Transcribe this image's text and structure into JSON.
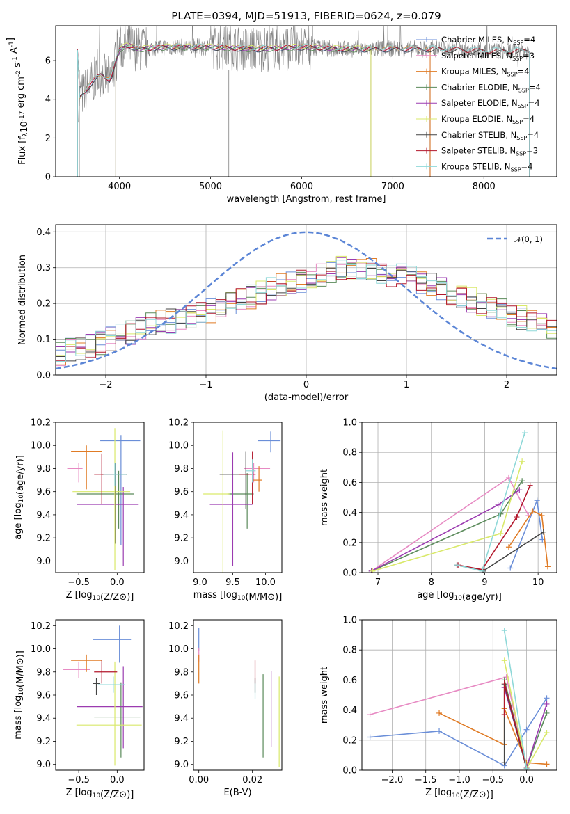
{
  "title": "PLATE=0394, MJD=51913, FIBERID=0624, z=0.079",
  "colors": {
    "Chabrier MILES": "#6a8ed8",
    "Salpeter MILES": "#e78ac3",
    "Kroupa MILES": "#e07b25",
    "Chabrier ELODIE": "#5a8a5a",
    "Salpeter ELODIE": "#9b3bb0",
    "Kroupa ELODIE": "#d9e96a",
    "Chabrier STELIB": "#444444",
    "Salpeter STELIB": "#b2172b",
    "Kroupa STELIB": "#8ed8d8",
    "data": "#808080",
    "gaussian": "#5b85d6"
  },
  "chart_data": [
    {
      "id": "spectrum",
      "type": "line",
      "xlabel": "wavelength [Angstrom, rest frame]",
      "ylabel": "Flux [f_λ10^-17 erg cm^-2 s^-1 A^-1]",
      "xlim": [
        3300,
        8800
      ],
      "ylim": [
        0,
        7.8
      ],
      "xticks": [
        "4000",
        "5000",
        "6000",
        "7000",
        "8000"
      ],
      "yticks": [
        "0",
        "2",
        "4",
        "6"
      ],
      "legend_position": "upper-right",
      "legend": [
        {
          "model": "Chabrier MILES",
          "label": "Chabrier MILES, N",
          "nssp": "4"
        },
        {
          "model": "Salpeter MILES",
          "label": "Salpeter MILES, N",
          "nssp": "3"
        },
        {
          "model": "Kroupa MILES",
          "label": "Kroupa MILES, N",
          "nssp": "4"
        },
        {
          "model": "Chabrier ELODIE",
          "label": "Chabrier ELODIE, N",
          "nssp": "4"
        },
        {
          "model": "Salpeter ELODIE",
          "label": "Salpeter ELODIE, N",
          "nssp": "4"
        },
        {
          "model": "Kroupa ELODIE",
          "label": "Kroupa ELODIE, N",
          "nssp": "4"
        },
        {
          "model": "Chabrier STELIB",
          "label": "Chabrier STELIB, N",
          "nssp": "4"
        },
        {
          "model": "Salpeter STELIB",
          "label": "Salpeter STELIB, N",
          "nssp": "3"
        },
        {
          "model": "Kroupa STELIB",
          "label": "Kroupa STELIB, N",
          "nssp": "4"
        }
      ],
      "nssp_subscript": "SSP",
      "model_continuum": {
        "x": [
          3550,
          3600,
          3700,
          3800,
          3900,
          4000,
          4100,
          4200,
          4500,
          5000,
          5500,
          6000,
          6500,
          7000,
          7500,
          8000,
          8500
        ],
        "y": [
          4.0,
          4.3,
          4.9,
          5.3,
          5.0,
          6.6,
          6.8,
          6.6,
          6.7,
          6.7,
          6.6,
          6.7,
          6.6,
          6.6,
          6.6,
          6.5,
          6.5
        ]
      },
      "model_ranges": {
        "MILES": [
          3540,
          7410
        ],
        "ELODIE": [
          3960,
          6760
        ],
        "STELIB": [
          3540,
          8500
        ]
      }
    },
    {
      "id": "residuals",
      "type": "histogram",
      "xlabel": "(data-model)/error",
      "ylabel": "Normed distribution",
      "xlim": [
        -2.5,
        2.5
      ],
      "ylim": [
        0,
        0.42
      ],
      "xticks": [
        "−2",
        "−1",
        "0",
        "1",
        "2"
      ],
      "yticks": [
        "0.0",
        "0.1",
        "0.2",
        "0.3",
        "0.4"
      ],
      "gaussian_label": "𝒩(0, 1)",
      "bin_width": 0.1,
      "base_profile": [
        0.06,
        0.07,
        0.07,
        0.08,
        0.09,
        0.1,
        0.11,
        0.12,
        0.13,
        0.14,
        0.15,
        0.15,
        0.16,
        0.16,
        0.17,
        0.18,
        0.19,
        0.2,
        0.21,
        0.22,
        0.23,
        0.24,
        0.25,
        0.26,
        0.26,
        0.27,
        0.28,
        0.29,
        0.3,
        0.3,
        0.3,
        0.3,
        0.29,
        0.28,
        0.28,
        0.27,
        0.26,
        0.25,
        0.24,
        0.23,
        0.22,
        0.21,
        0.2,
        0.19,
        0.18,
        0.17,
        0.16,
        0.15,
        0.14,
        0.13
      ]
    },
    {
      "id": "age_vs_Z",
      "type": "errorbar",
      "xlabel": "Z [log10(Z/Z⊙)]",
      "ylabel": "age  [log10(age/yr)]",
      "xlim": [
        -0.8,
        0.35
      ],
      "ylim": [
        8.9,
        10.2
      ],
      "xticks": [
        "−0.5",
        "0.0"
      ],
      "yticks": [
        "9.0",
        "9.2",
        "9.4",
        "9.6",
        "9.8",
        "10.0",
        "10.2"
      ],
      "points": [
        {
          "model": "Chabrier MILES",
          "x": 0.05,
          "y": 10.04,
          "xerr": [
            0.27,
            0.25
          ],
          "yerr": [
            0.9,
            0.05
          ]
        },
        {
          "model": "Salpeter MILES",
          "x": -0.5,
          "y": 9.8,
          "xerr": [
            0.15,
            0.05
          ],
          "yerr": [
            0.12,
            0.05
          ]
        },
        {
          "model": "Kroupa MILES",
          "x": -0.4,
          "y": 9.95,
          "xerr": [
            0.2,
            0.2
          ],
          "yerr": [
            0.33,
            0.05
          ]
        },
        {
          "model": "Chabrier ELODIE",
          "x": 0.02,
          "y": 9.58,
          "xerr": [
            0.55,
            0.2
          ],
          "yerr": [
            0.3,
            0.2
          ]
        },
        {
          "model": "Salpeter ELODIE",
          "x": 0.08,
          "y": 9.49,
          "xerr": [
            0.6,
            0.2
          ],
          "yerr": [
            0.53,
            0.15
          ]
        },
        {
          "model": "Kroupa ELODIE",
          "x": -0.03,
          "y": 9.6,
          "xerr": [
            0.55,
            0.2
          ],
          "yerr": [
            0.68,
            0.55
          ]
        },
        {
          "model": "Chabrier STELIB",
          "x": -0.02,
          "y": 9.75,
          "xerr": [
            0.18,
            0.15
          ],
          "yerr": [
            0.6,
            0.1
          ]
        },
        {
          "model": "Salpeter STELIB",
          "x": -0.2,
          "y": 9.75,
          "xerr": [
            0.1,
            0.15
          ],
          "yerr": [
            0.26,
            0.18
          ]
        },
        {
          "model": "Kroupa STELIB",
          "x": -0.03,
          "y": 9.75,
          "xerr": [
            0.15,
            0.15
          ],
          "yerr": [
            0.1,
            0.1
          ]
        }
      ]
    },
    {
      "id": "age_vs_mass",
      "type": "errorbar",
      "xlabel": "mass [log10(M/M⊙)]",
      "ylabel": "",
      "xlim": [
        8.9,
        10.25
      ],
      "ylim": [
        8.9,
        10.2
      ],
      "xticks": [
        "9.0",
        "9.5",
        "10.0"
      ],
      "yticks": [
        "9.0",
        "9.2",
        "9.4",
        "9.6",
        "9.8",
        "10.0",
        "10.2"
      ],
      "points": [
        {
          "model": "Chabrier MILES",
          "x": 10.08,
          "y": 10.04,
          "xerr": [
            0.2,
            0.15
          ],
          "yerr": [
            0.1,
            0.08
          ]
        },
        {
          "model": "Salpeter MILES",
          "x": 9.82,
          "y": 9.8,
          "xerr": [
            0.15,
            0.25
          ],
          "yerr": [
            0.12,
            0.05
          ]
        },
        {
          "model": "Kroupa MILES",
          "x": 9.9,
          "y": 9.7,
          "xerr": [
            0.1,
            0.05
          ],
          "yerr": [
            0.1,
            0.12
          ]
        },
        {
          "model": "Chabrier ELODIE",
          "x": 9.72,
          "y": 9.58,
          "xerr": [
            0.3,
            0.1
          ],
          "yerr": [
            0.3,
            0.18
          ]
        },
        {
          "model": "Salpeter ELODIE",
          "x": 9.5,
          "y": 9.49,
          "xerr": [
            0.35,
            0.3
          ],
          "yerr": [
            0.53,
            0.45
          ]
        },
        {
          "model": "Kroupa ELODIE",
          "x": 9.35,
          "y": 9.58,
          "xerr": [
            0.3,
            0.1
          ],
          "yerr": [
            0.68,
            0.55
          ]
        },
        {
          "model": "Chabrier STELIB",
          "x": 9.7,
          "y": 9.75,
          "xerr": [
            0.4,
            0.05
          ],
          "yerr": [
            0.3,
            0.2
          ]
        },
        {
          "model": "Salpeter STELIB",
          "x": 9.8,
          "y": 9.75,
          "xerr": [
            0.2,
            0.05
          ],
          "yerr": [
            0.26,
            0.2
          ]
        },
        {
          "model": "Kroupa STELIB",
          "x": 9.8,
          "y": 9.78,
          "xerr": [
            0.1,
            0.05
          ],
          "yerr": [
            0.1,
            0.1
          ]
        }
      ]
    },
    {
      "id": "weight_vs_age",
      "type": "line",
      "xlabel": "age  [log10(age/yr)]",
      "ylabel": "mass weight",
      "xlim": [
        6.7,
        10.35
      ],
      "ylim": [
        0,
        1.0
      ],
      "xticks": [
        "7",
        "8",
        "9",
        "10"
      ],
      "yticks": [
        "0.0",
        "0.2",
        "0.4",
        "0.6",
        "0.8",
        "1.0"
      ],
      "series": [
        {
          "model": "Chabrier MILES",
          "x": [
            9.48,
            9.98,
            10.08
          ],
          "y": [
            0.03,
            0.48,
            0.22
          ]
        },
        {
          "model": "Salpeter MILES",
          "x": [
            6.88,
            9.45,
            9.82
          ],
          "y": [
            0.01,
            0.63,
            0.38
          ]
        },
        {
          "model": "Kroupa MILES",
          "x": [
            9.45,
            9.9,
            10.07,
            10.18
          ],
          "y": [
            0.17,
            0.41,
            0.38,
            0.04
          ]
        },
        {
          "model": "Chabrier ELODIE",
          "x": [
            6.88,
            9.3,
            9.7
          ],
          "y": [
            0.01,
            0.39,
            0.61
          ]
        },
        {
          "model": "Salpeter ELODIE",
          "x": [
            6.88,
            9.25,
            9.65
          ],
          "y": [
            0.01,
            0.45,
            0.55
          ]
        },
        {
          "model": "Kroupa ELODIE",
          "x": [
            6.9,
            9.3,
            9.7
          ],
          "y": [
            0.01,
            0.26,
            0.74
          ]
        },
        {
          "model": "Chabrier STELIB",
          "x": [
            8.48,
            8.97,
            10.1
          ],
          "y": [
            0.05,
            0.01,
            0.27
          ]
        },
        {
          "model": "Salpeter STELIB",
          "x": [
            8.5,
            8.95,
            9.6,
            9.85
          ],
          "y": [
            0.05,
            0.02,
            0.37,
            0.58
          ]
        },
        {
          "model": "Kroupa STELIB",
          "x": [
            8.48,
            8.95,
            9.75
          ],
          "y": [
            0.05,
            0.01,
            0.93
          ]
        }
      ]
    },
    {
      "id": "mass_vs_Z",
      "type": "errorbar",
      "xlabel": "Z [log10(Z/Z⊙)]",
      "ylabel": "mass [log10(M/M⊙)]",
      "xlim": [
        -0.8,
        0.35
      ],
      "ylim": [
        8.95,
        10.25
      ],
      "xticks": [
        "−0.5",
        "0.0"
      ],
      "yticks": [
        "9.0",
        "9.2",
        "9.4",
        "9.6",
        "9.8",
        "10.0",
        "10.2"
      ],
      "points": [
        {
          "model": "Chabrier MILES",
          "x": 0.03,
          "y": 10.08,
          "xerr": [
            0.35,
            0.15
          ],
          "yerr": [
            0.2,
            0.12
          ]
        },
        {
          "model": "Salpeter MILES",
          "x": -0.5,
          "y": 9.82,
          "xerr": [
            0.2,
            0.15
          ],
          "yerr": [
            0.07,
            0.07
          ]
        },
        {
          "model": "Kroupa MILES",
          "x": -0.4,
          "y": 9.9,
          "xerr": [
            0.2,
            0.2
          ],
          "yerr": [
            0.1,
            0.05
          ]
        },
        {
          "model": "Chabrier ELODIE",
          "x": 0.05,
          "y": 9.41,
          "xerr": [
            0.35,
            0.25
          ],
          "yerr": [
            0.35,
            0.3
          ]
        },
        {
          "model": "Salpeter ELODIE",
          "x": 0.08,
          "y": 9.5,
          "xerr": [
            0.6,
            0.25
          ],
          "yerr": [
            0.36,
            0.35
          ]
        },
        {
          "model": "Kroupa ELODIE",
          "x": -0.03,
          "y": 9.34,
          "xerr": [
            0.5,
            0.35
          ],
          "yerr": [
            0.35,
            0.55
          ]
        },
        {
          "model": "Chabrier STELIB",
          "x": -0.27,
          "y": 9.7,
          "xerr": [
            0.05,
            0.05
          ],
          "yerr": [
            0.1,
            0.05
          ]
        },
        {
          "model": "Salpeter STELIB",
          "x": -0.2,
          "y": 9.8,
          "xerr": [
            0.1,
            0.2
          ],
          "yerr": [
            0.1,
            0.1
          ]
        },
        {
          "model": "Kroupa STELIB",
          "x": -0.05,
          "y": 9.69,
          "xerr": [
            0.2,
            0.15
          ],
          "yerr": [
            0.07,
            0.07
          ]
        }
      ]
    },
    {
      "id": "mass_vs_ebv",
      "type": "errorbar",
      "xlabel": "E(B-V)",
      "ylabel": "",
      "xlim": [
        -0.002,
        0.031
      ],
      "ylim": [
        8.95,
        10.25
      ],
      "xticks": [
        "0.00",
        "0.02"
      ],
      "yticks": [
        "9.0",
        "9.2",
        "9.4",
        "9.6",
        "9.8",
        "10.0",
        "10.2"
      ],
      "points": [
        {
          "model": "Chabrier MILES",
          "x": 0.0,
          "y": 10.08,
          "xerr": [
            0,
            0
          ],
          "yerr": [
            0.1,
            0.1
          ]
        },
        {
          "model": "Salpeter MILES",
          "x": 0.0,
          "y": 9.95,
          "xerr": [
            0,
            0
          ],
          "yerr": [
            0.06,
            0.06
          ]
        },
        {
          "model": "Kroupa MILES",
          "x": 0.0,
          "y": 9.85,
          "xerr": [
            0,
            0
          ],
          "yerr": [
            0.15,
            0.1
          ]
        },
        {
          "model": "Chabrier ELODIE",
          "x": 0.024,
          "y": 9.42,
          "xerr": [
            0,
            0
          ],
          "yerr": [
            0.36,
            0.36
          ]
        },
        {
          "model": "Salpeter ELODIE",
          "x": 0.027,
          "y": 9.48,
          "xerr": [
            0,
            0
          ],
          "yerr": [
            0.33,
            0.33
          ]
        },
        {
          "model": "Kroupa ELODIE",
          "x": 0.03,
          "y": 9.38,
          "xerr": [
            0,
            0
          ],
          "yerr": [
            0.4,
            0.38
          ]
        },
        {
          "model": "Chabrier STELIB",
          "x": 0.021,
          "y": 9.7,
          "xerr": [
            0,
            0
          ],
          "yerr": [
            0.08,
            0.05
          ]
        },
        {
          "model": "Salpeter STELIB",
          "x": 0.021,
          "y": 9.8,
          "xerr": [
            0,
            0
          ],
          "yerr": [
            0.1,
            0.1
          ]
        },
        {
          "model": "Kroupa STELIB",
          "x": 0.021,
          "y": 9.67,
          "xerr": [
            0,
            0
          ],
          "yerr": [
            0.1,
            0.06
          ]
        }
      ]
    },
    {
      "id": "weight_vs_Z",
      "type": "line",
      "xlabel": "Z [log10(Z/Z⊙)]",
      "ylabel": "mass weight",
      "xlim": [
        -2.45,
        0.45
      ],
      "ylim": [
        0,
        1.0
      ],
      "xticks": [
        "−2.0",
        "−1.5",
        "−1.0",
        "−0.5",
        "0.0"
      ],
      "yticks": [
        "0.0",
        "0.2",
        "0.4",
        "0.6",
        "0.8",
        "1.0"
      ],
      "series": [
        {
          "model": "Chabrier MILES",
          "x": [
            -2.33,
            -1.3,
            -0.33,
            0.0,
            0.3
          ],
          "y": [
            0.22,
            0.26,
            0.03,
            0.27,
            0.48
          ]
        },
        {
          "model": "Salpeter MILES",
          "x": [
            -2.33,
            -0.3,
            0.0
          ],
          "y": [
            0.37,
            0.62,
            0.02
          ]
        },
        {
          "model": "Kroupa MILES",
          "x": [
            -1.3,
            -0.33,
            -0.33,
            0.0,
            0.3
          ],
          "y": [
            0.38,
            0.17,
            0.41,
            0.05,
            0.04
          ]
        },
        {
          "model": "Chabrier ELODIE",
          "x": [
            -0.33,
            0.0,
            0.3
          ],
          "y": [
            0.6,
            0.02,
            0.38
          ]
        },
        {
          "model": "Salpeter ELODIE",
          "x": [
            -0.33,
            0.0,
            0.3
          ],
          "y": [
            0.55,
            0.02,
            0.44
          ]
        },
        {
          "model": "Kroupa ELODIE",
          "x": [
            -0.33,
            0.0,
            0.3
          ],
          "y": [
            0.73,
            0.01,
            0.25
          ]
        },
        {
          "model": "Chabrier STELIB",
          "x": [
            -0.33,
            -0.33,
            0.0
          ],
          "y": [
            0.05,
            0.57,
            0.01
          ]
        },
        {
          "model": "Salpeter STELIB",
          "x": [
            -0.33,
            -0.33,
            0.0
          ],
          "y": [
            0.37,
            0.58,
            0.02
          ]
        },
        {
          "model": "Kroupa STELIB",
          "x": [
            -0.33,
            0.0
          ],
          "y": [
            0.93,
            0.01
          ]
        }
      ]
    }
  ]
}
